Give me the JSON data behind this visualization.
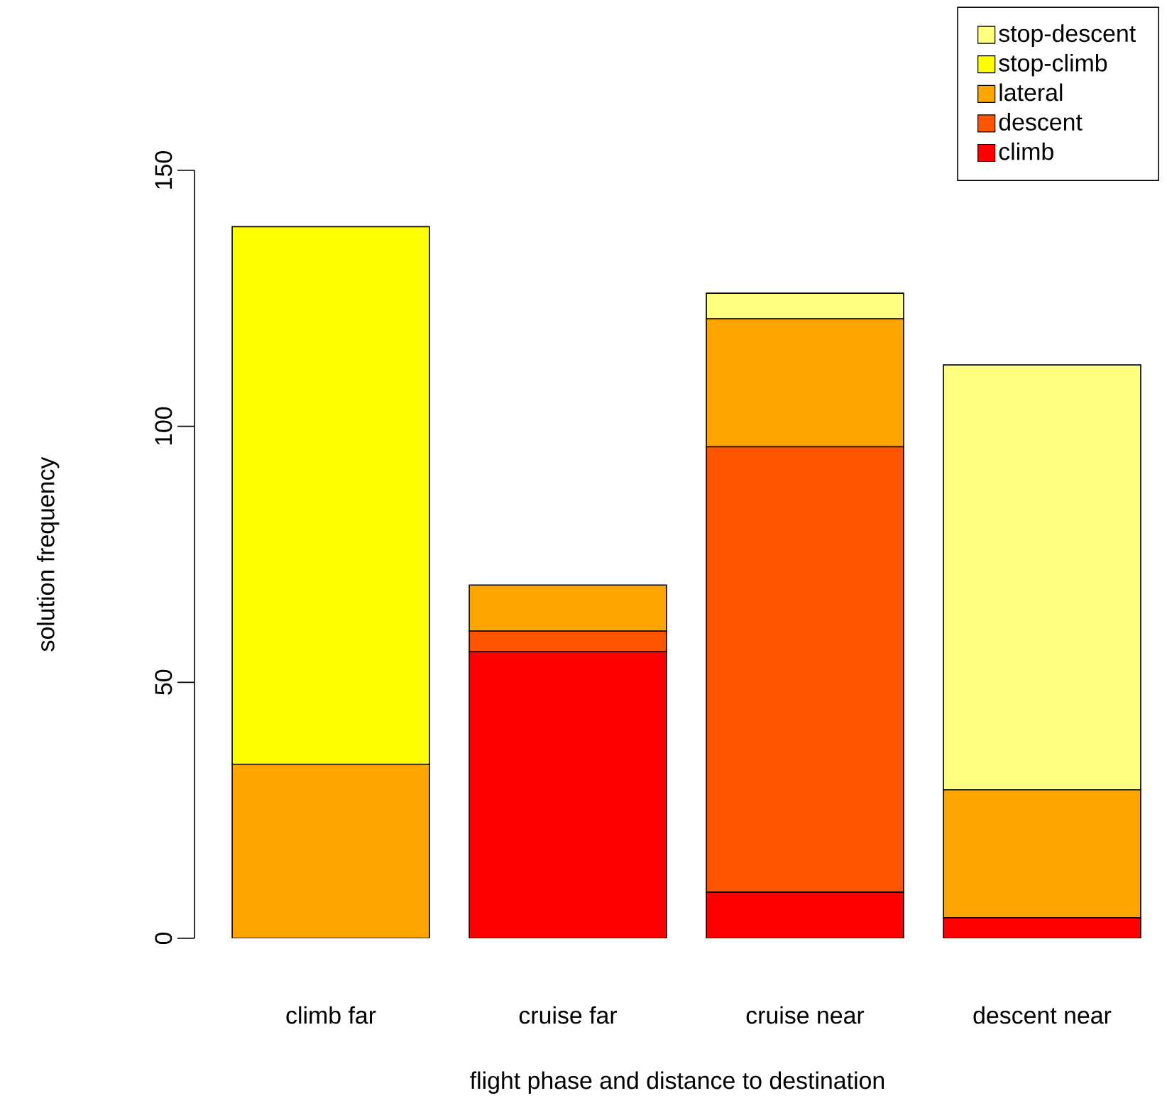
{
  "chart_data": {
    "type": "bar",
    "stacked": true,
    "xlabel": "flight phase and distance to destination",
    "ylabel": "solution frequency",
    "categories": [
      "climb far",
      "cruise far",
      "cruise near",
      "descent near"
    ],
    "series": [
      {
        "name": "climb",
        "color": "#ff0000",
        "values": [
          0,
          56,
          9,
          4
        ]
      },
      {
        "name": "descent",
        "color": "#ff5500",
        "values": [
          0,
          4,
          87,
          0
        ]
      },
      {
        "name": "lateral",
        "color": "#ffa500",
        "values": [
          34,
          9,
          25,
          25
        ]
      },
      {
        "name": "stop-climb",
        "color": "#ffff00",
        "values": [
          105,
          0,
          0,
          0
        ]
      },
      {
        "name": "stop-descent",
        "color": "#ffff80",
        "values": [
          0,
          0,
          5,
          83
        ]
      }
    ],
    "ylim": [
      0,
      150
    ],
    "yticks": [
      0,
      50,
      100,
      150
    ],
    "legend": "top right"
  }
}
